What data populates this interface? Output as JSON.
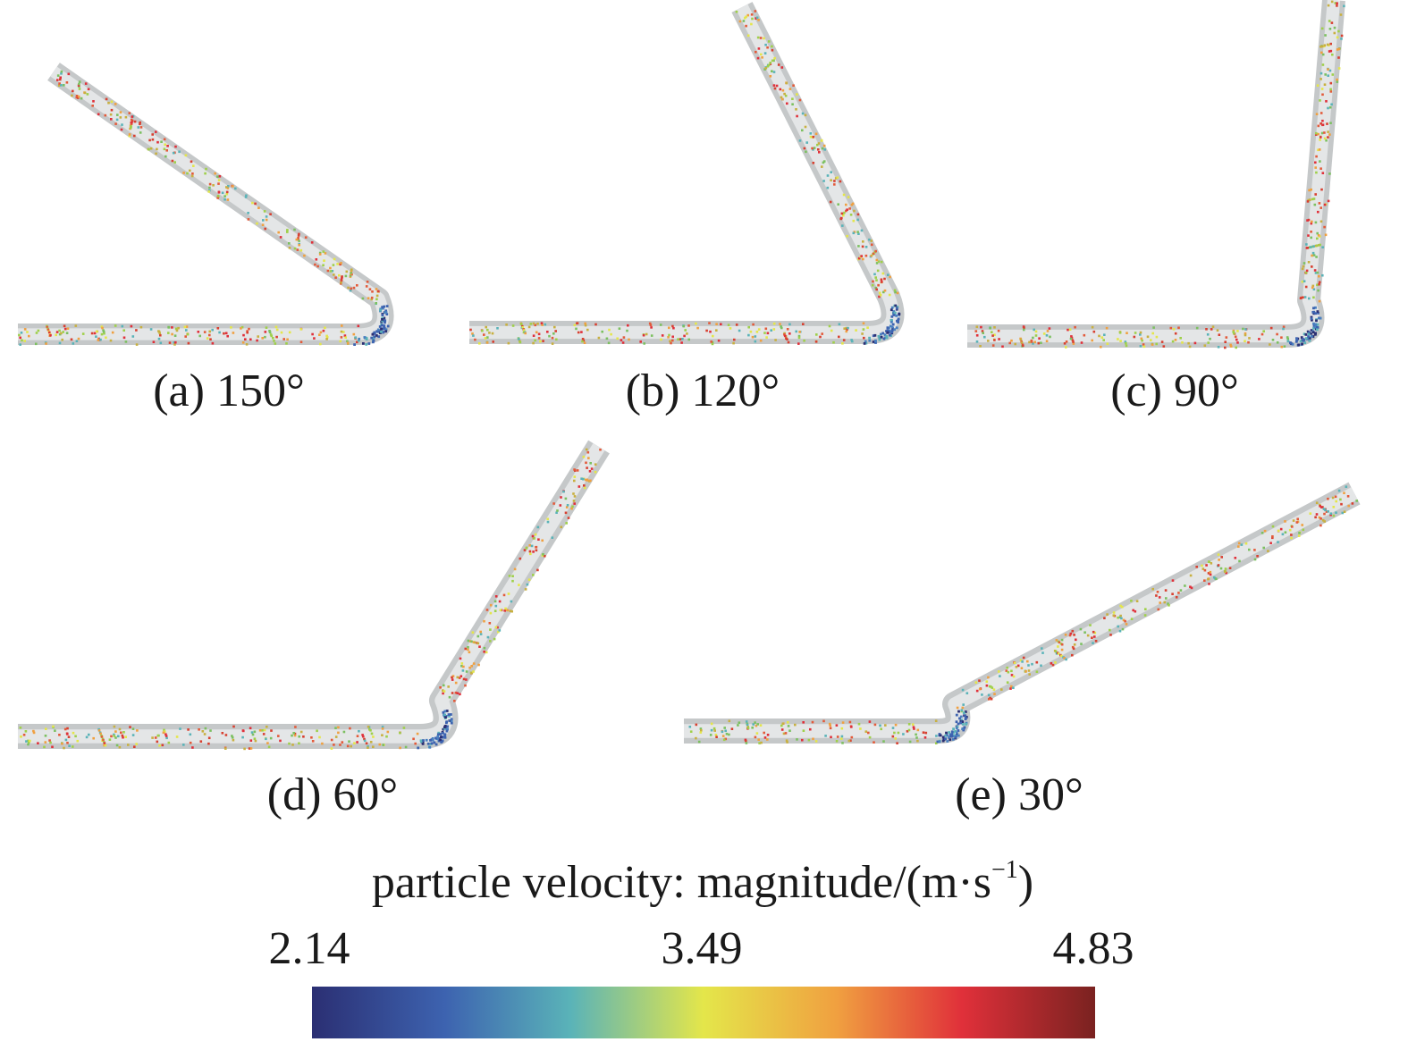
{
  "panels": [
    {
      "caption": "(a) 150°",
      "angle": 150
    },
    {
      "caption": "(b) 120°",
      "angle": 120
    },
    {
      "caption": "(c) 90°",
      "angle": 90
    },
    {
      "caption": "(d) 60°",
      "angle": 60
    },
    {
      "caption": "(e) 30°",
      "angle": 30
    }
  ],
  "colorbar": {
    "label_main": "particle velocity: magnitude/(m·s",
    "label_sup": "−1",
    "label_close": ")",
    "min": "2.14",
    "mid": "3.49",
    "max": "4.83",
    "colors": [
      "#2b2f73",
      "#3d63b0",
      "#5ab3b8",
      "#e4e64a",
      "#f0a040",
      "#e0303a",
      "#7a2220"
    ]
  }
}
